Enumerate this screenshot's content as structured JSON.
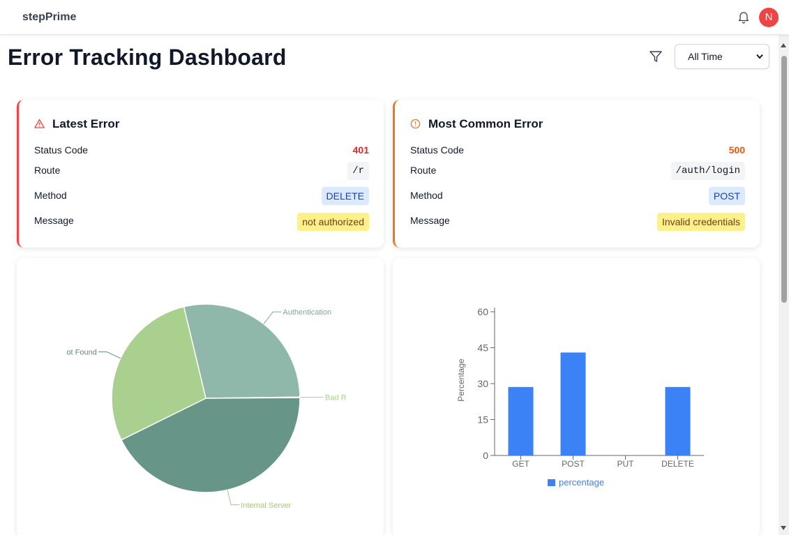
{
  "app": {
    "brand": "stepPrime",
    "avatar_initial": "N"
  },
  "header": {
    "title": "Error Tracking Dashboard",
    "time_filter": "All Time"
  },
  "latest_error": {
    "title": "Latest Error",
    "status_label": "Status Code",
    "status": "401",
    "route_label": "Route",
    "route": "/r",
    "method_label": "Method",
    "method": "DELETE",
    "message_label": "Message",
    "message": "not authorized"
  },
  "common_error": {
    "title": "Most Common Error",
    "status_label": "Status Code",
    "status": "500",
    "route_label": "Route",
    "route": "/auth/login",
    "method_label": "Method",
    "method": "POST",
    "message_label": "Message",
    "message": "Invalid credentials"
  },
  "colors": {
    "red": "#ef4444",
    "orange": "#f97316",
    "bar": "#3b82f6",
    "pie": [
      "#8fb8ab",
      "#b0cc8a",
      "#679688",
      "#a9d08e"
    ]
  },
  "chart_data": [
    {
      "type": "pie",
      "labels": [
        "Authentication",
        "Bad R",
        "Internal Server",
        "ot Found"
      ],
      "values": [
        28.57,
        0.1,
        42.86,
        28.57
      ]
    },
    {
      "type": "bar",
      "categories": [
        "GET",
        "POST",
        "PUT",
        "DELETE"
      ],
      "series": [
        {
          "name": "percentage",
          "values": [
            28.6,
            43,
            0,
            28.6
          ]
        }
      ],
      "ylabel": "Percentage",
      "ylim": [
        0,
        60
      ],
      "yticks": [
        "0",
        "15",
        "30",
        "45",
        "60"
      ]
    }
  ]
}
